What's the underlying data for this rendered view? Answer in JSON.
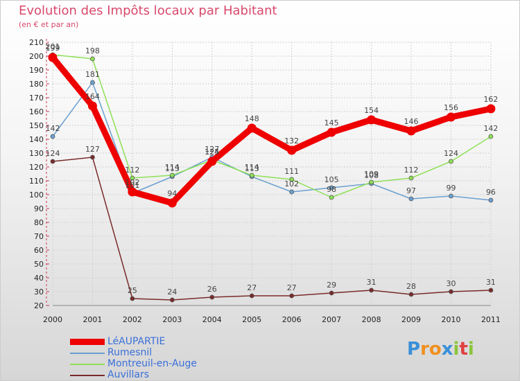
{
  "chart_data": {
    "type": "line",
    "title": "Evolution des Impôts locaux par Habitant",
    "subtitle": "(en € et par an)",
    "xlabel": "",
    "ylabel": "",
    "ylim": [
      20,
      210
    ],
    "grid": true,
    "categories": [
      "2000",
      "2001",
      "2002",
      "2003",
      "2004",
      "2005",
      "2006",
      "2007",
      "2008",
      "2009",
      "2010",
      "2011"
    ],
    "yticks": [
      20,
      30,
      40,
      50,
      60,
      70,
      80,
      90,
      100,
      110,
      120,
      130,
      140,
      150,
      160,
      170,
      180,
      190,
      200,
      210
    ],
    "series": [
      {
        "name": "Auvillars",
        "color": "#7a2a2a",
        "values": [
          124,
          127,
          25,
          24,
          26,
          27,
          27,
          29,
          31,
          28,
          30,
          31
        ]
      },
      {
        "name": "Rumesnil",
        "color": "#6aa0d0",
        "values": [
          142,
          181,
          101,
          113,
          127,
          113,
          102,
          105,
          108,
          97,
          99,
          96
        ]
      },
      {
        "name": "Montreuil-en-Auge",
        "color": "#8ee055",
        "values": [
          201,
          198,
          112,
          114,
          125,
          114,
          111,
          98,
          109,
          112,
          124,
          142
        ]
      },
      {
        "name": "LéAUPARTIE",
        "color": "#ee0000",
        "values": [
          199,
          164,
          102,
          94,
          124,
          148,
          132,
          145,
          154,
          146,
          156,
          162
        ]
      }
    ]
  },
  "legend": [
    {
      "label": "LéAUPARTIE",
      "color": "#ee0000"
    },
    {
      "label": "Rumesnil",
      "color": "#6aa0d0"
    },
    {
      "label": "Montreuil-en-Auge",
      "color": "#8ee055"
    },
    {
      "label": "Auvillars",
      "color": "#7a2a2a"
    }
  ],
  "logo": {
    "letters": [
      "P",
      "r",
      "o",
      "x",
      "i",
      "t",
      "i"
    ],
    "colors": [
      "#3a8fd8",
      "#f09020",
      "#f09020",
      "#3a8fd8",
      "#8ac53a",
      "#e04040",
      "#8ac53a"
    ]
  }
}
